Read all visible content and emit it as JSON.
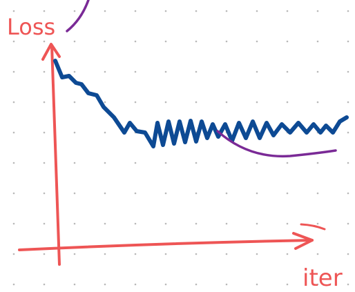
{
  "labels": {
    "y_axis": "Loss",
    "x_axis": "iter"
  }
}
